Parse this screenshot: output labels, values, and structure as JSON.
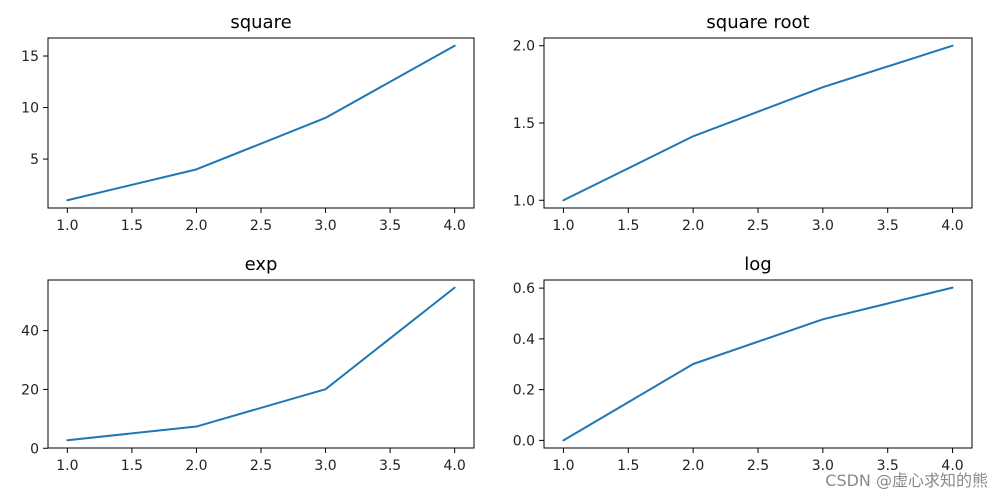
{
  "chart_data": [
    {
      "type": "line",
      "title": "square",
      "x": [
        1.0,
        2.0,
        3.0,
        4.0
      ],
      "series": [
        {
          "values": [
            1,
            4,
            9,
            16
          ],
          "color": "#1f77b4"
        }
      ],
      "xticks": [
        "1.0",
        "1.5",
        "2.0",
        "2.5",
        "3.0",
        "3.5",
        "4.0"
      ],
      "yticks": [
        "5",
        "10",
        "15"
      ],
      "ylim": [
        0.25,
        16.75
      ],
      "xlim": [
        0.85,
        4.15
      ]
    },
    {
      "type": "line",
      "title": "square root",
      "x": [
        1.0,
        2.0,
        3.0,
        4.0
      ],
      "series": [
        {
          "values": [
            1.0,
            1.414,
            1.732,
            2.0
          ],
          "color": "#1f77b4"
        }
      ],
      "xticks": [
        "1.0",
        "1.5",
        "2.0",
        "2.5",
        "3.0",
        "3.5",
        "4.0"
      ],
      "yticks": [
        "1.0",
        "1.5",
        "2.0"
      ],
      "ylim": [
        0.95,
        2.05
      ],
      "xlim": [
        0.85,
        4.15
      ]
    },
    {
      "type": "line",
      "title": "exp",
      "x": [
        1.0,
        2.0,
        3.0,
        4.0
      ],
      "series": [
        {
          "values": [
            2.718,
            7.389,
            20.086,
            54.598
          ],
          "color": "#1f77b4"
        }
      ],
      "xticks": [
        "1.0",
        "1.5",
        "2.0",
        "2.5",
        "3.0",
        "3.5",
        "4.0"
      ],
      "yticks": [
        "0",
        "20",
        "40"
      ],
      "ylim": [
        0.09,
        57.2
      ],
      "xlim": [
        0.85,
        4.15
      ]
    },
    {
      "type": "line",
      "title": "log",
      "x": [
        1.0,
        2.0,
        3.0,
        4.0
      ],
      "series": [
        {
          "values": [
            0.0,
            0.301,
            0.477,
            0.602
          ],
          "color": "#1f77b4"
        }
      ],
      "xticks": [
        "1.0",
        "1.5",
        "2.0",
        "2.5",
        "3.0",
        "3.5",
        "4.0"
      ],
      "yticks": [
        "0.0",
        "0.2",
        "0.4",
        "0.6"
      ],
      "ylim": [
        -0.03,
        0.632
      ],
      "xlim": [
        0.85,
        4.15
      ]
    }
  ],
  "watermark": "CSDN @虚心求知的熊"
}
